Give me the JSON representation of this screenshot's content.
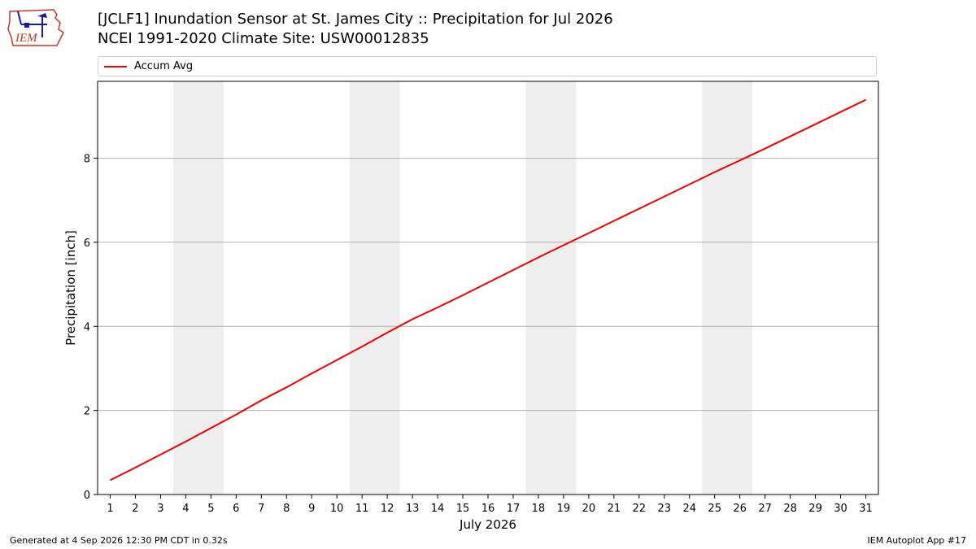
{
  "header": {
    "logo_text": "IEM",
    "title": "[JCLF1] Inundation Sensor at St. James City :: Precipitation for Jul 2026",
    "subtitle": "NCEI 1991-2020 Climate Site: USW00012835"
  },
  "footer": {
    "generated": "Generated at 4 Sep 2026 12:30 PM CDT in 0.32s",
    "app": "IEM Autoplot App #17"
  },
  "colors": {
    "line": "#ee0000",
    "weekend_band": "#eeeeee",
    "grid": "#b0b0b0",
    "logo": "#c0392b"
  },
  "chart_data": {
    "type": "line",
    "xlabel": "July 2026",
    "ylabel": "Precipitation [inch]",
    "xlim": [
      0.5,
      31.5
    ],
    "ylim": [
      0,
      9.83
    ],
    "grid": "horizontal",
    "legend_position": "top",
    "x_ticks": [
      "1",
      "2",
      "3",
      "4",
      "5",
      "6",
      "7",
      "8",
      "9",
      "10",
      "11",
      "12",
      "13",
      "14",
      "15",
      "16",
      "17",
      "18",
      "19",
      "20",
      "21",
      "22",
      "23",
      "24",
      "25",
      "26",
      "27",
      "28",
      "29",
      "30",
      "31"
    ],
    "y_ticks": [
      0,
      2,
      4,
      6,
      8
    ],
    "weekend_bands": [
      [
        3.5,
        5.5
      ],
      [
        10.5,
        12.5
      ],
      [
        17.5,
        19.5
      ],
      [
        24.5,
        26.5
      ]
    ],
    "series": [
      {
        "name": "Accum Avg",
        "x": [
          1,
          2,
          3,
          4,
          5,
          6,
          7,
          8,
          9,
          10,
          11,
          12,
          13,
          14,
          15,
          16,
          17,
          18,
          19,
          20,
          21,
          22,
          23,
          24,
          25,
          26,
          27,
          28,
          29,
          30,
          31
        ],
        "values": [
          0.34,
          0.64,
          0.95,
          1.26,
          1.58,
          1.9,
          2.24,
          2.55,
          2.88,
          3.2,
          3.52,
          3.85,
          4.17,
          4.45,
          4.74,
          5.04,
          5.34,
          5.64,
          5.93,
          6.22,
          6.51,
          6.8,
          7.09,
          7.38,
          7.67,
          7.95,
          8.23,
          8.52,
          8.81,
          9.1,
          9.39
        ]
      }
    ]
  }
}
